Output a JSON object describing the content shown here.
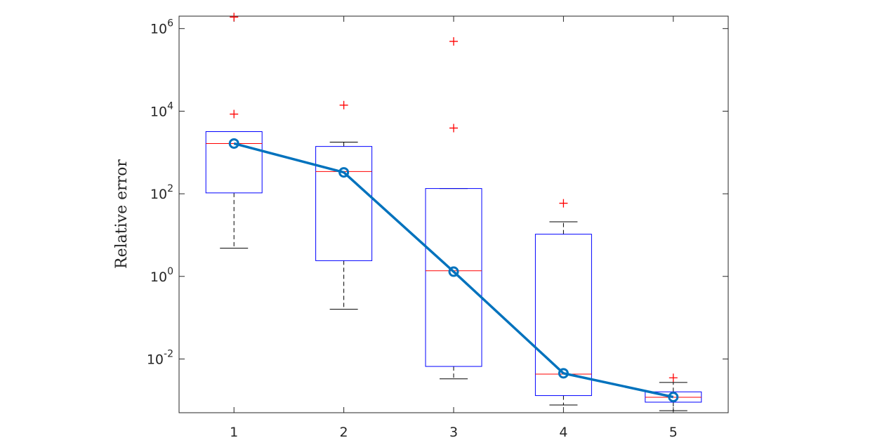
{
  "chart_data": {
    "type": "boxplot",
    "y_label": "Relative error",
    "log_y": true,
    "categories": [
      "1",
      "2",
      "3",
      "4",
      "5"
    ],
    "xlim": [
      0.5,
      5.5
    ],
    "ylim": [
      0.0005,
      2000000
    ],
    "yticks": [
      {
        "value": 0.01,
        "label": "10^-2"
      },
      {
        "value": 1,
        "label": "10^0"
      },
      {
        "value": 100,
        "label": "10^2"
      },
      {
        "value": 10000,
        "label": "10^4"
      },
      {
        "value": 1000000,
        "label": "10^6"
      }
    ],
    "box_color": "#0000ff",
    "median_color": "#ff0000",
    "whisker_color": "#000000",
    "outlier_color": "#ff0000",
    "boxes": [
      {
        "whisker_low": 4.8,
        "q1": 105,
        "median": 1650,
        "q3": 3200,
        "whisker_high": 3200,
        "outliers": [
          8500,
          1900000
        ]
      },
      {
        "whisker_low": 0.16,
        "q1": 2.4,
        "median": 345,
        "q3": 1400,
        "whisker_high": 1780,
        "outliers": [
          14000
        ]
      },
      {
        "whisker_low": 0.0033,
        "q1": 0.0066,
        "median": 1.37,
        "q3": 134,
        "whisker_high": 134,
        "outliers": [
          3900,
          490000
        ]
      },
      {
        "whisker_low": 0.00077,
        "q1": 0.0013,
        "median": 0.0043,
        "q3": 10.5,
        "whisker_high": 21,
        "outliers": [
          59
        ]
      },
      {
        "whisker_low": 0.00056,
        "q1": 0.0009,
        "median": 0.00118,
        "q3": 0.0016,
        "whisker_high": 0.0027,
        "outliers": [
          0.0035
        ]
      }
    ],
    "series": [
      {
        "color": "#0072bd",
        "values": [
          1650,
          330,
          1.3,
          0.0045,
          0.0012
        ]
      }
    ]
  }
}
